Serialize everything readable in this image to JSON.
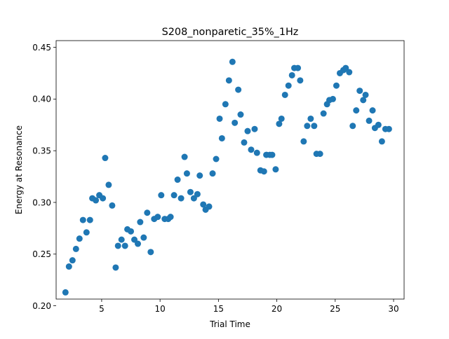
{
  "chart_data": {
    "type": "scatter",
    "title": "S208_nonparetic_35%_1Hz",
    "xlabel": "Trial Time",
    "ylabel": "Energy at Resonance",
    "xlim": [
      1.1,
      30.9
    ],
    "ylim": [
      0.2065,
      0.4565
    ],
    "xticks": [
      5,
      10,
      15,
      20,
      25,
      30
    ],
    "yticks": [
      0.2,
      0.25,
      0.3,
      0.35,
      0.4,
      0.45
    ],
    "ytick_labels": [
      "0.20",
      "0.25",
      "0.30",
      "0.35",
      "0.40",
      "0.45"
    ],
    "grid": false,
    "legend": "none",
    "marker_color": "#1f77b4",
    "points": [
      [
        1.9,
        0.213
      ],
      [
        2.2,
        0.238
      ],
      [
        2.5,
        0.244
      ],
      [
        2.8,
        0.255
      ],
      [
        3.1,
        0.265
      ],
      [
        3.4,
        0.283
      ],
      [
        3.7,
        0.271
      ],
      [
        4.0,
        0.283
      ],
      [
        4.2,
        0.304
      ],
      [
        4.5,
        0.302
      ],
      [
        4.8,
        0.307
      ],
      [
        5.1,
        0.304
      ],
      [
        5.3,
        0.343
      ],
      [
        5.6,
        0.317
      ],
      [
        5.9,
        0.297
      ],
      [
        6.2,
        0.237
      ],
      [
        6.4,
        0.258
      ],
      [
        6.7,
        0.264
      ],
      [
        7.0,
        0.258
      ],
      [
        7.2,
        0.274
      ],
      [
        7.5,
        0.272
      ],
      [
        7.8,
        0.264
      ],
      [
        8.1,
        0.26
      ],
      [
        8.3,
        0.281
      ],
      [
        8.6,
        0.266
      ],
      [
        8.9,
        0.29
      ],
      [
        9.2,
        0.252
      ],
      [
        9.5,
        0.284
      ],
      [
        9.8,
        0.286
      ],
      [
        10.1,
        0.307
      ],
      [
        10.4,
        0.284
      ],
      [
        10.7,
        0.284
      ],
      [
        10.9,
        0.286
      ],
      [
        11.2,
        0.307
      ],
      [
        11.5,
        0.322
      ],
      [
        11.8,
        0.304
      ],
      [
        12.1,
        0.344
      ],
      [
        12.3,
        0.328
      ],
      [
        12.6,
        0.31
      ],
      [
        12.9,
        0.304
      ],
      [
        13.2,
        0.308
      ],
      [
        13.4,
        0.326
      ],
      [
        13.7,
        0.298
      ],
      [
        13.9,
        0.293
      ],
      [
        14.2,
        0.296
      ],
      [
        14.5,
        0.328
      ],
      [
        14.8,
        0.342
      ],
      [
        15.1,
        0.381
      ],
      [
        15.3,
        0.362
      ],
      [
        15.6,
        0.395
      ],
      [
        15.9,
        0.418
      ],
      [
        16.2,
        0.436
      ],
      [
        16.4,
        0.377
      ],
      [
        16.7,
        0.409
      ],
      [
        16.9,
        0.385
      ],
      [
        17.2,
        0.358
      ],
      [
        17.5,
        0.369
      ],
      [
        17.8,
        0.351
      ],
      [
        18.1,
        0.371
      ],
      [
        18.3,
        0.348
      ],
      [
        18.6,
        0.331
      ],
      [
        18.9,
        0.33
      ],
      [
        19.1,
        0.346
      ],
      [
        19.4,
        0.346
      ],
      [
        19.6,
        0.346
      ],
      [
        19.9,
        0.332
      ],
      [
        20.2,
        0.376
      ],
      [
        20.4,
        0.381
      ],
      [
        20.7,
        0.404
      ],
      [
        21.0,
        0.413
      ],
      [
        21.3,
        0.423
      ],
      [
        21.5,
        0.43
      ],
      [
        21.8,
        0.43
      ],
      [
        22.0,
        0.418
      ],
      [
        22.3,
        0.359
      ],
      [
        22.6,
        0.374
      ],
      [
        22.9,
        0.381
      ],
      [
        23.2,
        0.374
      ],
      [
        23.4,
        0.347
      ],
      [
        23.7,
        0.347
      ],
      [
        24.0,
        0.386
      ],
      [
        24.3,
        0.395
      ],
      [
        24.5,
        0.399
      ],
      [
        24.8,
        0.4
      ],
      [
        25.1,
        0.413
      ],
      [
        25.4,
        0.425
      ],
      [
        25.7,
        0.428
      ],
      [
        25.9,
        0.43
      ],
      [
        26.2,
        0.426
      ],
      [
        26.5,
        0.374
      ],
      [
        26.8,
        0.389
      ],
      [
        27.1,
        0.408
      ],
      [
        27.4,
        0.399
      ],
      [
        27.6,
        0.404
      ],
      [
        27.9,
        0.379
      ],
      [
        28.2,
        0.389
      ],
      [
        28.4,
        0.372
      ],
      [
        28.7,
        0.375
      ],
      [
        29.0,
        0.359
      ],
      [
        29.3,
        0.371
      ],
      [
        29.6,
        0.371
      ]
    ]
  }
}
